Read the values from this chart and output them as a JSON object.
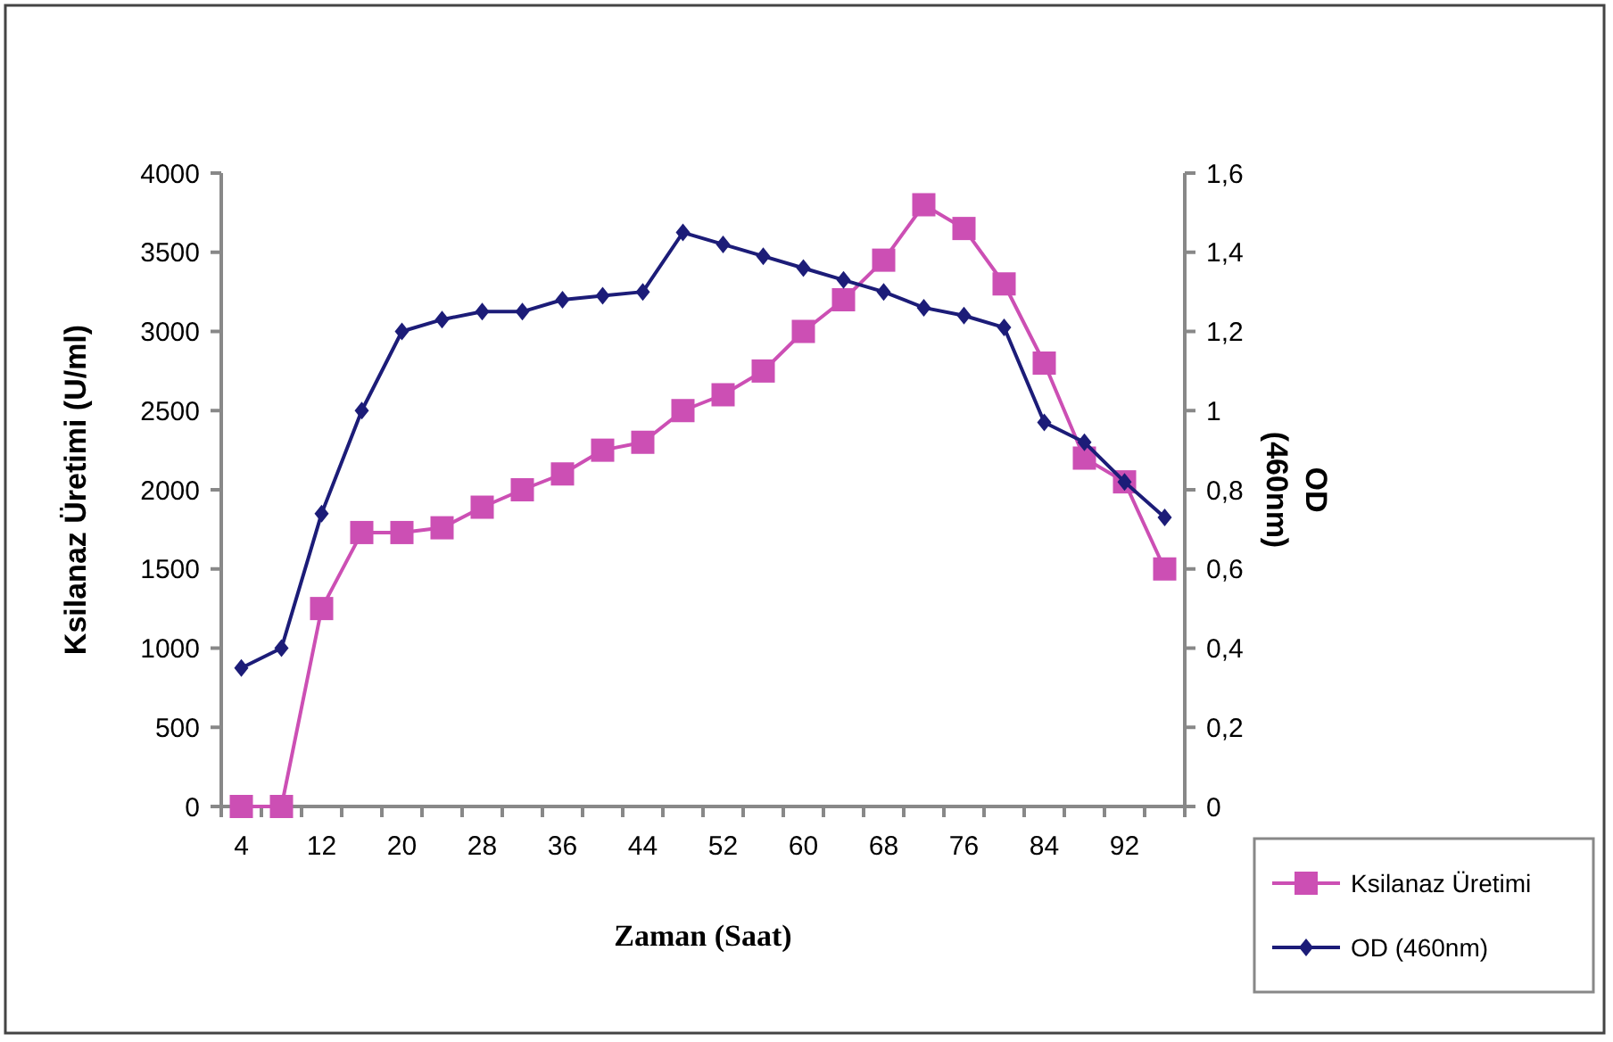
{
  "chart_data": {
    "type": "line",
    "xlabel": "Zaman (Saat)",
    "ylabel": "Ksilanaz Üretimi (U/ml)",
    "y2label": "OD\n(460nm)",
    "categories": [
      "4",
      null,
      "12",
      null,
      "20",
      null,
      "28",
      null,
      "36",
      null,
      "44",
      null,
      "52",
      null,
      "60",
      null,
      "68",
      null,
      "76",
      null,
      "84",
      null,
      "92",
      null
    ],
    "series": [
      {
        "name": "Ksilanaz Üretimi",
        "color": "#cc4fb4",
        "marker": "square",
        "values": [
          0,
          0,
          1250,
          1730,
          1730,
          1760,
          1890,
          2000,
          2100,
          2250,
          2300,
          2500,
          2600,
          2750,
          3000,
          3200,
          3450,
          3800,
          3650,
          3300,
          2800,
          2200,
          2050,
          1500
        ]
      },
      {
        "name": "OD (460nm)",
        "color": "#1c1c78",
        "marker": "diamond",
        "axis": "y2",
        "values": [
          0.35,
          0.4,
          0.74,
          1.0,
          1.2,
          1.23,
          1.25,
          1.25,
          1.28,
          1.29,
          1.3,
          1.45,
          1.42,
          1.39,
          1.36,
          1.33,
          1.3,
          1.26,
          1.24,
          1.21,
          0.97,
          0.92,
          0.82,
          0.73
        ]
      }
    ],
    "ylim": [
      0,
      4000
    ],
    "yticks": [
      0,
      500,
      1000,
      1500,
      2000,
      2500,
      3000,
      3500,
      4000
    ],
    "y2lim": [
      0,
      1.6
    ],
    "y2ticks": [
      0,
      {
        "value": 0.2,
        "label": "0,2"
      },
      {
        "value": 0.4,
        "label": "0,4"
      },
      {
        "value": 0.6,
        "label": "0,6"
      },
      {
        "value": 0.8,
        "label": "0,8"
      },
      1,
      {
        "value": 1.2,
        "label": "1,2"
      },
      {
        "value": 1.4,
        "label": "1,4"
      },
      {
        "value": 1.6,
        "label": "1,6"
      }
    ],
    "grid": false,
    "legend": "bottom right"
  }
}
